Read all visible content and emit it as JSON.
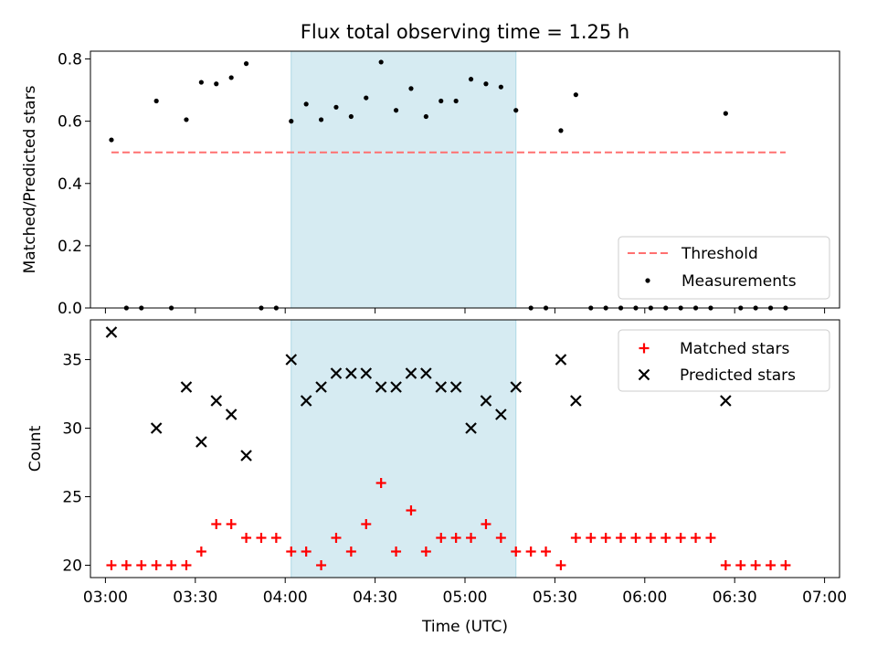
{
  "chart_data": {
    "title": "Flux total observing time = 1.25 h",
    "xlabel": "Time (UTC)",
    "x_tick_labels": [
      "03:00",
      "03:30",
      "04:00",
      "04:30",
      "05:00",
      "05:30",
      "06:00",
      "06:30",
      "07:00"
    ],
    "x_tick_minutes": [
      180,
      210,
      240,
      270,
      300,
      330,
      360,
      390,
      420
    ],
    "xlim_minutes": [
      175,
      425
    ],
    "highlight_span": [
      "04:02",
      "05:17"
    ],
    "highlight_span_minutes": [
      242,
      317
    ],
    "highlight_color": "#add8e6",
    "grid": false,
    "top": {
      "type": "scatter",
      "ylabel": "Matched/Predicted stars",
      "ylim": [
        0,
        0.825
      ],
      "y_ticks": [
        0.0,
        0.2,
        0.4,
        0.6,
        0.8
      ],
      "y_tick_labels": [
        "0.0",
        "0.2",
        "0.4",
        "0.6",
        "0.8"
      ],
      "threshold": {
        "name": "Threshold",
        "value": 0.5,
        "x_range": [
          "03:02",
          "06:47"
        ],
        "x_range_minutes": [
          182,
          407
        ],
        "color": "#ff7070",
        "style": "dashed"
      },
      "series": [
        {
          "name": "Measurements",
          "color": "#000000",
          "x": [
            "03:02",
            "03:07",
            "03:12",
            "03:17",
            "03:22",
            "03:27",
            "03:32",
            "03:37",
            "03:42",
            "03:47",
            "03:52",
            "03:57",
            "04:02",
            "04:07",
            "04:12",
            "04:17",
            "04:22",
            "04:27",
            "04:32",
            "04:37",
            "04:42",
            "04:47",
            "04:52",
            "04:57",
            "05:02",
            "05:07",
            "05:12",
            "05:17",
            "05:22",
            "05:27",
            "05:32",
            "05:37",
            "05:42",
            "05:47",
            "05:52",
            "05:57",
            "06:02",
            "06:07",
            "06:12",
            "06:17",
            "06:22",
            "06:27",
            "06:32",
            "06:37",
            "06:42",
            "06:47"
          ],
          "x_minutes": [
            182,
            187,
            192,
            197,
            202,
            207,
            212,
            217,
            222,
            227,
            232,
            237,
            242,
            247,
            252,
            257,
            262,
            267,
            272,
            277,
            282,
            287,
            292,
            297,
            302,
            307,
            312,
            317,
            322,
            327,
            332,
            337,
            342,
            347,
            352,
            357,
            362,
            367,
            372,
            377,
            382,
            387,
            392,
            397,
            402,
            407
          ],
          "y": [
            0.54,
            0,
            0,
            0.665,
            0,
            0.605,
            0.725,
            0.72,
            0.74,
            0.785,
            0,
            0,
            0.6,
            0.655,
            0.605,
            0.645,
            0.615,
            0.675,
            0.79,
            0.635,
            0.705,
            0.615,
            0.665,
            0.665,
            0.735,
            0.72,
            0.71,
            0.635,
            0,
            0,
            0.57,
            0.685,
            0,
            0,
            0,
            0,
            0,
            0,
            0,
            0,
            0,
            0.625,
            0,
            0,
            0,
            0
          ]
        }
      ],
      "legend": {
        "position": "lower right",
        "entries": [
          "Threshold",
          "Measurements"
        ]
      }
    },
    "bottom": {
      "type": "scatter",
      "ylabel": "Count",
      "ylim": [
        19.1,
        37.9
      ],
      "y_ticks": [
        20,
        25,
        30,
        35
      ],
      "y_tick_labels": [
        "20",
        "25",
        "30",
        "35"
      ],
      "series": [
        {
          "name": "Matched stars",
          "marker": "plus",
          "color": "#ff0000",
          "x": [
            "03:02",
            "03:07",
            "03:12",
            "03:17",
            "03:22",
            "03:27",
            "03:32",
            "03:37",
            "03:42",
            "03:47",
            "03:52",
            "03:57",
            "04:02",
            "04:07",
            "04:12",
            "04:17",
            "04:22",
            "04:27",
            "04:32",
            "04:37",
            "04:42",
            "04:47",
            "04:52",
            "04:57",
            "05:02",
            "05:07",
            "05:12",
            "05:17",
            "05:22",
            "05:27",
            "05:32",
            "05:37",
            "05:42",
            "05:47",
            "05:52",
            "05:57",
            "06:02",
            "06:07",
            "06:12",
            "06:17",
            "06:22",
            "06:27",
            "06:32",
            "06:37",
            "06:42",
            "06:47"
          ],
          "x_minutes": [
            182,
            187,
            192,
            197,
            202,
            207,
            212,
            217,
            222,
            227,
            232,
            237,
            242,
            247,
            252,
            257,
            262,
            267,
            272,
            277,
            282,
            287,
            292,
            297,
            302,
            307,
            312,
            317,
            322,
            327,
            332,
            337,
            342,
            347,
            352,
            357,
            362,
            367,
            372,
            377,
            382,
            387,
            392,
            397,
            402,
            407
          ],
          "y": [
            20,
            20,
            20,
            20,
            20,
            20,
            21,
            23,
            23,
            22,
            22,
            22,
            21,
            21,
            20,
            22,
            21,
            23,
            26,
            21,
            24,
            21,
            22,
            22,
            22,
            23,
            22,
            21,
            21,
            21,
            20,
            22,
            22,
            22,
            22,
            22,
            22,
            22,
            22,
            22,
            22,
            20,
            20,
            20,
            20,
            20
          ]
        },
        {
          "name": "Predicted stars",
          "marker": "x",
          "color": "#000000",
          "x": [
            "03:02",
            "03:17",
            "03:27",
            "03:32",
            "03:37",
            "03:42",
            "03:47",
            "04:02",
            "04:07",
            "04:12",
            "04:17",
            "04:22",
            "04:27",
            "04:32",
            "04:37",
            "04:42",
            "04:47",
            "04:52",
            "04:57",
            "05:02",
            "05:07",
            "05:12",
            "05:17",
            "05:32",
            "05:37",
            "06:27"
          ],
          "x_minutes": [
            182,
            197,
            207,
            212,
            217,
            222,
            227,
            242,
            247,
            252,
            257,
            262,
            267,
            272,
            277,
            282,
            287,
            292,
            297,
            302,
            307,
            312,
            317,
            332,
            337,
            387
          ],
          "y": [
            37,
            30,
            33,
            29,
            32,
            31,
            28,
            35,
            32,
            33,
            34,
            34,
            34,
            33,
            33,
            34,
            34,
            33,
            33,
            30,
            32,
            31,
            33,
            35,
            32,
            32
          ]
        }
      ],
      "legend": {
        "position": "upper right",
        "entries": [
          "Matched stars",
          "Predicted stars"
        ]
      }
    }
  }
}
